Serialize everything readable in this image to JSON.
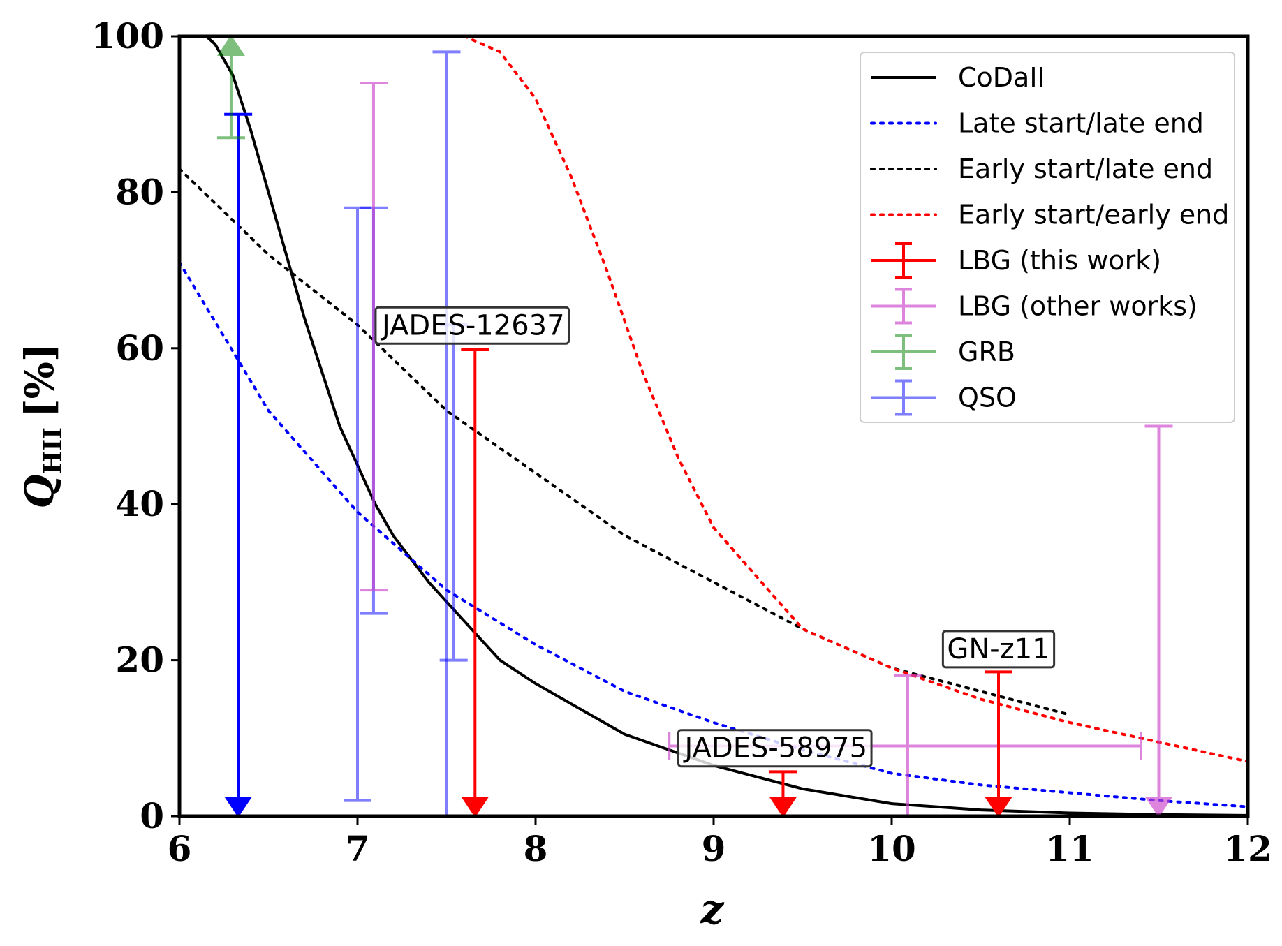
{
  "chart_data": {
    "type": "line",
    "title": "",
    "xlabel": "z",
    "ylabel": "Q",
    "ylabel_subscript": "HII",
    "ylabel_unit": "[%]",
    "xlim": [
      6,
      12
    ],
    "ylim": [
      0,
      100
    ],
    "xticks": [
      6,
      7,
      8,
      9,
      10,
      11,
      12
    ],
    "yticks": [
      0,
      20,
      40,
      60,
      80,
      100
    ],
    "legend_position": "top-right",
    "models": [
      {
        "name": "CoDaII",
        "color": "#000000",
        "style": "solid",
        "x": [
          6.0,
          6.15,
          6.2,
          6.3,
          6.4,
          6.5,
          6.6,
          6.7,
          6.8,
          6.9,
          7.0,
          7.1,
          7.2,
          7.4,
          7.6,
          7.8,
          8.0,
          8.5,
          9.0,
          9.5,
          10.0,
          10.5,
          11.0,
          11.5,
          12.0
        ],
        "y": [
          100,
          100,
          99,
          95,
          88,
          80,
          72,
          64,
          57,
          50,
          45,
          40,
          36,
          30,
          25,
          20,
          17,
          10.5,
          6.5,
          3.5,
          1.6,
          0.8,
          0.4,
          0.2,
          0.1
        ]
      },
      {
        "name": "Late start/late end",
        "color": "#0000ff",
        "style": "dotted",
        "x": [
          6.0,
          6.5,
          7.0,
          7.5,
          8.0,
          8.5,
          9.0,
          9.5,
          10.0,
          10.5,
          11.0,
          11.5,
          12.0
        ],
        "y": [
          71,
          52,
          39,
          29,
          22,
          16,
          12,
          8.5,
          5.5,
          4,
          3,
          2,
          1.2
        ]
      },
      {
        "name": "Early start/late end",
        "color": "#000000",
        "style": "dotted",
        "x": [
          6.0,
          6.5,
          7.0,
          7.5,
          8.0,
          8.5,
          9.0,
          9.5,
          10.0,
          10.5,
          11.0
        ],
        "y": [
          83,
          72,
          63,
          52,
          44,
          36,
          30,
          24,
          19,
          16,
          13
        ]
      },
      {
        "name": "Early start/early end",
        "color": "#ff0000",
        "style": "dotted",
        "x": [
          7.6,
          7.8,
          8.0,
          8.2,
          8.4,
          8.6,
          8.8,
          9.0,
          9.5,
          10.0,
          10.5,
          11.0,
          11.5,
          12.0
        ],
        "y": [
          100,
          98,
          92,
          82,
          70,
          57,
          46,
          37,
          24,
          19,
          15,
          12,
          9.5,
          7
        ]
      }
    ],
    "observations": [
      {
        "series": "QSO",
        "color": "#0000ff",
        "z": 6.33,
        "y_upper": 90,
        "upper_limit": true,
        "alpha": 1.0
      },
      {
        "series": "QSO",
        "color": "#0000ff",
        "z": 7.0,
        "y": 40,
        "y_low": 2,
        "y_high": 78,
        "alpha": 0.5
      },
      {
        "series": "QSO",
        "color": "#0000ff",
        "z": 7.09,
        "y": 52,
        "y_low": 26,
        "y_high": 78,
        "alpha": 0.5
      },
      {
        "series": "QSO",
        "color": "#0000ff",
        "z": 7.54,
        "y": 40,
        "y_low": 20,
        "y_high": 63,
        "alpha": 0.5
      },
      {
        "series": "QSO",
        "color": "#0000ff",
        "z": 7.5,
        "y": 60,
        "y_low": 0,
        "y_high": 98,
        "alpha": 0.5,
        "no_low_cap": true
      },
      {
        "series": "GRB",
        "color": "#008000",
        "z": 6.29,
        "y": 100,
        "y_low": 87,
        "lower_limit": true,
        "alpha": 0.5
      },
      {
        "series": "LBG (other works)",
        "color": "#cc44cc",
        "z": 7.09,
        "y": 60,
        "y_low": 29,
        "y_high": 94,
        "alpha": 0.65
      },
      {
        "series": "LBG (other works)",
        "color": "#cc44cc",
        "z": 10.09,
        "y": 9,
        "x_low": 8.75,
        "x_high": 11.4,
        "y_low": 0,
        "y_high": 18,
        "alpha": 0.65,
        "no_low_cap": true
      },
      {
        "series": "LBG (other works)",
        "color": "#cc44cc",
        "z": 11.5,
        "y_upper": 50,
        "upper_limit": true,
        "alpha": 0.65
      },
      {
        "series": "LBG (this work)",
        "color": "#ff0000",
        "z": 7.66,
        "y_upper": 59.8,
        "upper_limit": true,
        "alpha": 1.0
      },
      {
        "series": "LBG (this work)",
        "color": "#ff0000",
        "z": 9.39,
        "y_upper": 5.7,
        "upper_limit": true,
        "alpha": 1.0
      },
      {
        "series": "LBG (this work)",
        "color": "#ff0000",
        "z": 10.6,
        "y_upper": 18.5,
        "upper_limit": true,
        "alpha": 1.0
      }
    ],
    "annotations": [
      {
        "text": "JADES-12637",
        "x": 7.65,
        "y": 63
      },
      {
        "text": "GN-z11",
        "x": 10.6,
        "y": 21.5
      },
      {
        "text": "JADES-58975",
        "x": 9.35,
        "y": 8.8
      }
    ],
    "legend": [
      {
        "label": "CoDaII",
        "kind": "line",
        "color": "#000000",
        "dash": "solid"
      },
      {
        "label": "Late start/late end",
        "kind": "line",
        "color": "#0000ff",
        "dash": "dotted"
      },
      {
        "label": "Early start/late end",
        "kind": "line",
        "color": "#000000",
        "dash": "dotted"
      },
      {
        "label": "Early start/early end",
        "kind": "line",
        "color": "#ff0000",
        "dash": "dotted"
      },
      {
        "label": "LBG (this work)",
        "kind": "errorbar",
        "color": "#ff0000",
        "alpha": 1.0
      },
      {
        "label": "LBG (other works)",
        "kind": "errorbar",
        "color": "#cc44cc",
        "alpha": 0.65
      },
      {
        "label": "GRB",
        "kind": "errorbar",
        "color": "#008000",
        "alpha": 0.5
      },
      {
        "label": "QSO",
        "kind": "errorbar",
        "color": "#0000ff",
        "alpha": 0.5
      }
    ]
  }
}
